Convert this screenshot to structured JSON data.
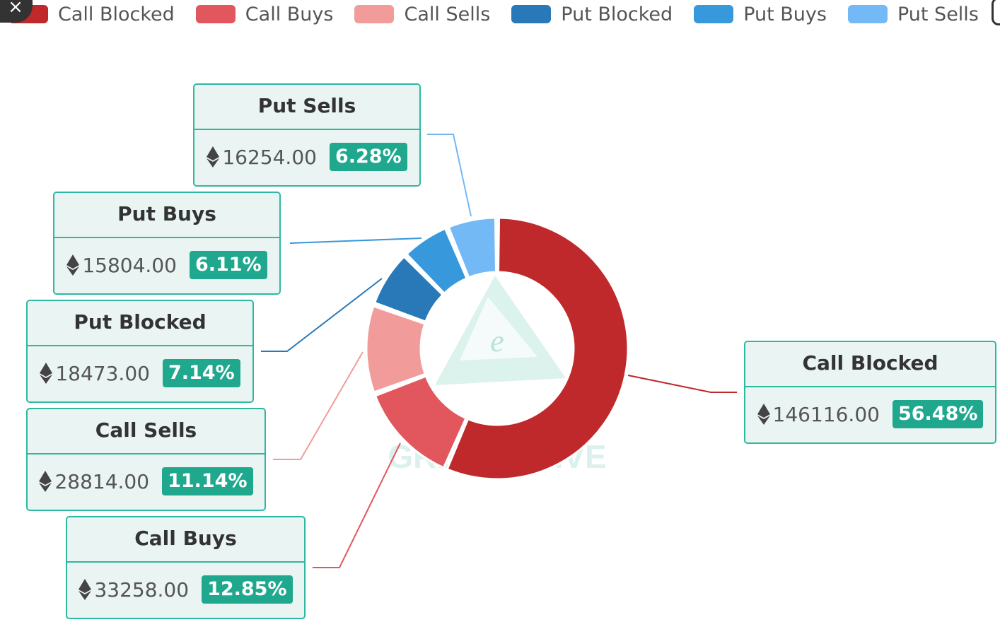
{
  "legend": {
    "items": [
      {
        "label": "Call Blocked",
        "color": "#c0292b"
      },
      {
        "label": "Call Buys",
        "color": "#e2575d"
      },
      {
        "label": "Call Sells",
        "color": "#f19c9a"
      },
      {
        "label": "Put Blocked",
        "color": "#2979b8"
      },
      {
        "label": "Put Buys",
        "color": "#3898dc"
      },
      {
        "label": "Put Sells",
        "color": "#73b9f5"
      }
    ]
  },
  "icons": {
    "close": "close-icon",
    "currency": "ethereum-icon"
  },
  "watermark": {
    "text": "GREEKS.LIVE",
    "logo_letter": "e"
  },
  "chart_data": {
    "type": "pie",
    "variant": "donut",
    "currency_symbol": "ETH",
    "slices": [
      {
        "name": "Call Blocked",
        "value": 146116.0,
        "value_label": "146116.00",
        "percent_label": "56.48%",
        "color": "#c0292b"
      },
      {
        "name": "Call Buys",
        "value": 33258.0,
        "value_label": "33258.00",
        "percent_label": "12.85%",
        "color": "#e2575d"
      },
      {
        "name": "Call Sells",
        "value": 28814.0,
        "value_label": "28814.00",
        "percent_label": "11.14%",
        "color": "#f19c9a"
      },
      {
        "name": "Put Blocked",
        "value": 18473.0,
        "value_label": "18473.00",
        "percent_label": "7.14%",
        "color": "#2979b8"
      },
      {
        "name": "Put Buys",
        "value": 15804.0,
        "value_label": "15804.00",
        "percent_label": "6.11%",
        "color": "#3898dc"
      },
      {
        "name": "Put Sells",
        "value": 16254.0,
        "value_label": "16254.00",
        "percent_label": "6.28%",
        "color": "#73b9f5"
      }
    ],
    "colors": {
      "label_border": "#2fb8a0",
      "label_background": "#eaf5f3",
      "percent_badge": "#1fa88e"
    }
  }
}
